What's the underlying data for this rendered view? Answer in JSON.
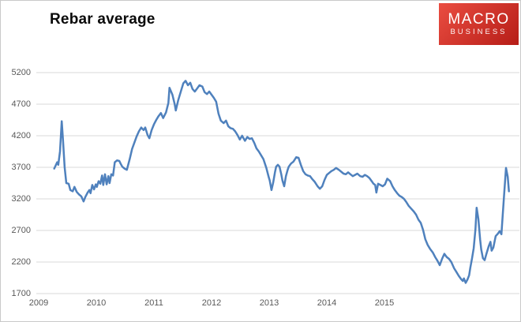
{
  "header": {
    "title": "Rebar average"
  },
  "logo": {
    "line1": "MACRO",
    "line2": "BUSINESS",
    "bg_top": "#ea4d41",
    "bg_bottom": "#b61d17",
    "text_color": "#ffffff"
  },
  "chart_data": {
    "type": "line",
    "title": "Rebar average",
    "series_name": "Rebar average",
    "xlabel": "",
    "ylabel": "",
    "legend": "none",
    "grid": "horizontal",
    "line_color": "#4f81bd",
    "grid_color": "#d9d9d9",
    "axis_label_color": "#595959",
    "ylim": [
      1700,
      5200
    ],
    "y_ticks": [
      5200,
      4700,
      4200,
      3700,
      3200,
      2700,
      2200,
      1700
    ],
    "x_ticks": [
      2009,
      2010,
      2011,
      2012,
      2013,
      2014,
      2015
    ],
    "points": [
      [
        2009.27,
        3680
      ],
      [
        2009.32,
        3780
      ],
      [
        2009.34,
        3740
      ],
      [
        2009.37,
        3950
      ],
      [
        2009.4,
        4430
      ],
      [
        2009.42,
        4150
      ],
      [
        2009.45,
        3700
      ],
      [
        2009.48,
        3450
      ],
      [
        2009.52,
        3440
      ],
      [
        2009.55,
        3340
      ],
      [
        2009.59,
        3320
      ],
      [
        2009.62,
        3390
      ],
      [
        2009.66,
        3310
      ],
      [
        2009.7,
        3270
      ],
      [
        2009.74,
        3240
      ],
      [
        2009.78,
        3160
      ],
      [
        2009.81,
        3230
      ],
      [
        2009.85,
        3300
      ],
      [
        2009.88,
        3340
      ],
      [
        2009.9,
        3290
      ],
      [
        2009.93,
        3420
      ],
      [
        2009.96,
        3350
      ],
      [
        2009.99,
        3430
      ],
      [
        2010.01,
        3390
      ],
      [
        2010.04,
        3480
      ],
      [
        2010.07,
        3440
      ],
      [
        2010.1,
        3570
      ],
      [
        2010.12,
        3420
      ],
      [
        2010.15,
        3590
      ],
      [
        2010.18,
        3430
      ],
      [
        2010.21,
        3560
      ],
      [
        2010.23,
        3450
      ],
      [
        2010.26,
        3590
      ],
      [
        2010.29,
        3570
      ],
      [
        2010.32,
        3780
      ],
      [
        2010.36,
        3810
      ],
      [
        2010.4,
        3800
      ],
      [
        2010.42,
        3760
      ],
      [
        2010.45,
        3710
      ],
      [
        2010.49,
        3680
      ],
      [
        2010.53,
        3660
      ],
      [
        2010.58,
        3830
      ],
      [
        2010.62,
        3990
      ],
      [
        2010.66,
        4090
      ],
      [
        2010.7,
        4190
      ],
      [
        2010.74,
        4270
      ],
      [
        2010.78,
        4330
      ],
      [
        2010.82,
        4290
      ],
      [
        2010.85,
        4330
      ],
      [
        2010.89,
        4210
      ],
      [
        2010.92,
        4160
      ],
      [
        2010.96,
        4290
      ],
      [
        2011.0,
        4380
      ],
      [
        2011.04,
        4450
      ],
      [
        2011.08,
        4510
      ],
      [
        2011.12,
        4560
      ],
      [
        2011.16,
        4480
      ],
      [
        2011.21,
        4570
      ],
      [
        2011.25,
        4720
      ],
      [
        2011.27,
        4960
      ],
      [
        2011.32,
        4850
      ],
      [
        2011.36,
        4700
      ],
      [
        2011.38,
        4600
      ],
      [
        2011.42,
        4760
      ],
      [
        2011.47,
        4910
      ],
      [
        2011.51,
        5030
      ],
      [
        2011.55,
        5070
      ],
      [
        2011.59,
        5000
      ],
      [
        2011.63,
        5040
      ],
      [
        2011.67,
        4940
      ],
      [
        2011.71,
        4900
      ],
      [
        2011.75,
        4950
      ],
      [
        2011.79,
        5000
      ],
      [
        2011.84,
        4980
      ],
      [
        2011.88,
        4890
      ],
      [
        2011.92,
        4860
      ],
      [
        2011.96,
        4900
      ],
      [
        2012.0,
        4850
      ],
      [
        2012.04,
        4800
      ],
      [
        2012.08,
        4740
      ],
      [
        2012.12,
        4550
      ],
      [
        2012.16,
        4440
      ],
      [
        2012.21,
        4400
      ],
      [
        2012.25,
        4440
      ],
      [
        2012.29,
        4350
      ],
      [
        2012.33,
        4320
      ],
      [
        2012.37,
        4310
      ],
      [
        2012.41,
        4270
      ],
      [
        2012.45,
        4210
      ],
      [
        2012.49,
        4140
      ],
      [
        2012.53,
        4200
      ],
      [
        2012.58,
        4120
      ],
      [
        2012.62,
        4180
      ],
      [
        2012.66,
        4150
      ],
      [
        2012.7,
        4160
      ],
      [
        2012.74,
        4090
      ],
      [
        2012.78,
        4000
      ],
      [
        2012.82,
        3950
      ],
      [
        2012.86,
        3890
      ],
      [
        2012.9,
        3830
      ],
      [
        2012.95,
        3690
      ],
      [
        2012.99,
        3550
      ],
      [
        2013.01,
        3490
      ],
      [
        2013.04,
        3340
      ],
      [
        2013.07,
        3460
      ],
      [
        2013.1,
        3620
      ],
      [
        2013.12,
        3710
      ],
      [
        2013.15,
        3740
      ],
      [
        2013.18,
        3710
      ],
      [
        2013.21,
        3590
      ],
      [
        2013.23,
        3490
      ],
      [
        2013.26,
        3400
      ],
      [
        2013.29,
        3560
      ],
      [
        2013.32,
        3660
      ],
      [
        2013.34,
        3710
      ],
      [
        2013.38,
        3760
      ],
      [
        2013.42,
        3790
      ],
      [
        2013.47,
        3860
      ],
      [
        2013.51,
        3850
      ],
      [
        2013.55,
        3740
      ],
      [
        2013.59,
        3640
      ],
      [
        2013.63,
        3590
      ],
      [
        2013.67,
        3570
      ],
      [
        2013.71,
        3560
      ],
      [
        2013.75,
        3510
      ],
      [
        2013.79,
        3470
      ],
      [
        2013.84,
        3400
      ],
      [
        2013.88,
        3360
      ],
      [
        2013.92,
        3400
      ],
      [
        2013.96,
        3500
      ],
      [
        2014.0,
        3580
      ],
      [
        2014.04,
        3610
      ],
      [
        2014.08,
        3640
      ],
      [
        2014.12,
        3660
      ],
      [
        2014.16,
        3690
      ],
      [
        2014.21,
        3660
      ],
      [
        2014.25,
        3630
      ],
      [
        2014.29,
        3600
      ],
      [
        2014.33,
        3590
      ],
      [
        2014.37,
        3620
      ],
      [
        2014.41,
        3590
      ],
      [
        2014.45,
        3560
      ],
      [
        2014.49,
        3580
      ],
      [
        2014.53,
        3600
      ],
      [
        2014.58,
        3560
      ],
      [
        2014.62,
        3550
      ],
      [
        2014.66,
        3580
      ],
      [
        2014.7,
        3560
      ],
      [
        2014.74,
        3530
      ],
      [
        2014.78,
        3480
      ],
      [
        2014.81,
        3440
      ],
      [
        2014.84,
        3420
      ],
      [
        2014.86,
        3300
      ],
      [
        2014.89,
        3440
      ],
      [
        2014.93,
        3420
      ],
      [
        2014.97,
        3400
      ],
      [
        2015.01,
        3430
      ],
      [
        2015.05,
        3520
      ],
      [
        2015.1,
        3480
      ],
      [
        2015.14,
        3400
      ],
      [
        2015.18,
        3340
      ],
      [
        2015.22,
        3290
      ],
      [
        2015.26,
        3250
      ],
      [
        2015.3,
        3230
      ],
      [
        2015.34,
        3200
      ],
      [
        2015.38,
        3150
      ],
      [
        2015.42,
        3090
      ],
      [
        2015.47,
        3040
      ],
      [
        2015.51,
        3000
      ],
      [
        2015.55,
        2950
      ],
      [
        2015.59,
        2870
      ],
      [
        2015.63,
        2820
      ],
      [
        2015.67,
        2710
      ],
      [
        2015.71,
        2560
      ],
      [
        2015.75,
        2470
      ],
      [
        2015.79,
        2410
      ],
      [
        2015.84,
        2350
      ],
      [
        2015.88,
        2280
      ],
      [
        2015.92,
        2220
      ],
      [
        2015.96,
        2150
      ],
      [
        2016.0,
        2250
      ],
      [
        2016.04,
        2330
      ],
      [
        2016.08,
        2280
      ],
      [
        2016.12,
        2250
      ],
      [
        2016.16,
        2200
      ],
      [
        2016.21,
        2100
      ],
      [
        2016.25,
        2040
      ],
      [
        2016.29,
        1980
      ],
      [
        2016.33,
        1930
      ],
      [
        2016.36,
        1900
      ],
      [
        2016.38,
        1940
      ],
      [
        2016.41,
        1870
      ],
      [
        2016.44,
        1920
      ],
      [
        2016.47,
        1990
      ],
      [
        2016.49,
        2110
      ],
      [
        2016.52,
        2260
      ],
      [
        2016.55,
        2420
      ],
      [
        2016.58,
        2720
      ],
      [
        2016.6,
        3060
      ],
      [
        2016.63,
        2880
      ],
      [
        2016.66,
        2560
      ],
      [
        2016.68,
        2400
      ],
      [
        2016.71,
        2260
      ],
      [
        2016.74,
        2230
      ],
      [
        2016.77,
        2330
      ],
      [
        2016.81,
        2450
      ],
      [
        2016.84,
        2520
      ],
      [
        2016.86,
        2380
      ],
      [
        2016.89,
        2430
      ],
      [
        2016.93,
        2610
      ],
      [
        2016.97,
        2650
      ],
      [
        2017.0,
        2690
      ],
      [
        2017.03,
        2640
      ],
      [
        2017.05,
        2900
      ],
      [
        2017.08,
        3300
      ],
      [
        2017.11,
        3690
      ],
      [
        2017.14,
        3550
      ],
      [
        2017.16,
        3320
      ]
    ]
  }
}
